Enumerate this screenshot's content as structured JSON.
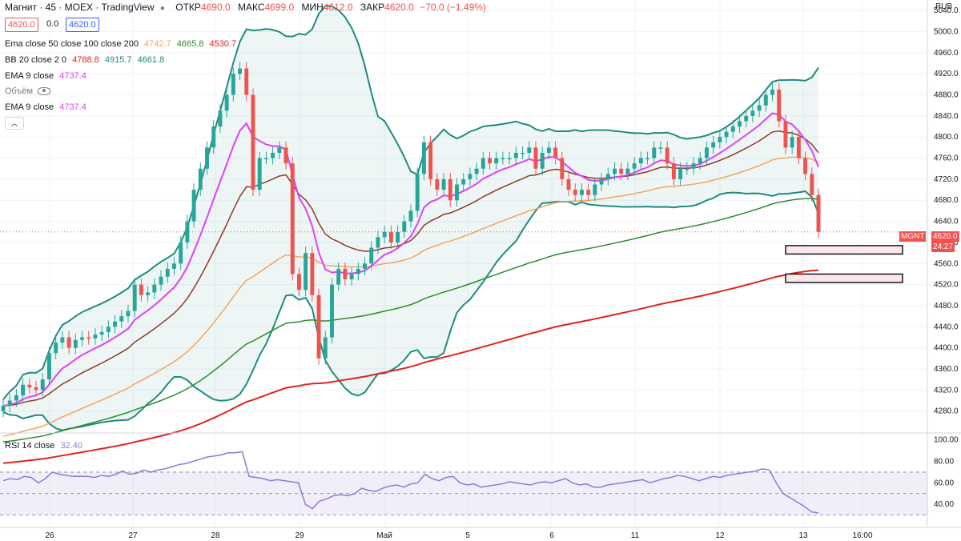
{
  "header": {
    "symbol": "Магнит · 45 · MOEX · TradingView",
    "open_label": "ОТКР",
    "open": "4690.0",
    "high_label": "МАКС",
    "high": "4699.0",
    "low_label": "МИН",
    "low": "4612.0",
    "close_label": "ЗАКР",
    "close": "4620.0",
    "change": "−70.0 (−1.49%)",
    "currency": "RUB",
    "bid": "4620.0",
    "spread": "0.0",
    "ask": "4620.0"
  },
  "indicators": {
    "ema": {
      "label": "Ema close 50 close 100 close 200",
      "v1": "4742.7",
      "v2": "4665.8",
      "v3": "4530.7"
    },
    "bb": {
      "label": "BB 20 close 2 0",
      "v1": "4788.8",
      "v2": "4915.7",
      "v3": "4661.8"
    },
    "ema9a": {
      "label": "EMA 9 close",
      "v": "4737.4"
    },
    "volume": {
      "label": "Объём"
    },
    "ema9b": {
      "label": "EMA 9 close",
      "v": "4737.4"
    },
    "rsi": {
      "label": "RSI 14 close",
      "v": "32.40"
    }
  },
  "price_tag": {
    "ticker": "MGNT",
    "price": "4620.0",
    "timer": "24:27"
  },
  "chart_data": {
    "type": "candlestick",
    "y_range": [
      4240,
      5060
    ],
    "y_ticks": [
      4280,
      4320,
      4360,
      4400,
      4440,
      4480,
      4520,
      4560,
      4600,
      4640,
      4680,
      4720,
      4760,
      4800,
      4840,
      4880,
      4920,
      4960,
      5000,
      5040
    ],
    "x_labels": [
      "26",
      "27",
      "28",
      "29",
      "Май",
      "5",
      "6",
      "11",
      "12",
      "13",
      "16:00"
    ],
    "rsi_ticks": [
      40,
      60,
      80,
      100
    ],
    "rsi_levels": [
      70,
      50,
      30
    ],
    "closes": [
      4290,
      4300,
      4310,
      4330,
      4325,
      4320,
      4340,
      4390,
      4410,
      4420,
      4400,
      4415,
      4420,
      4418,
      4425,
      4430,
      4440,
      4450,
      4460,
      4470,
      4520,
      4500,
      4505,
      4520,
      4535,
      4550,
      4560,
      4600,
      4640,
      4700,
      4740,
      4780,
      4820,
      4850,
      4880,
      4920,
      4930,
      4880,
      4700,
      4760,
      4760,
      4770,
      4780,
      4750,
      4540,
      4510,
      4580,
      4500,
      4380,
      4420,
      4520,
      4550,
      4530,
      4540,
      4550,
      4560,
      4590,
      4610,
      4620,
      4600,
      4620,
      4640,
      4660,
      4730,
      4790,
      4720,
      4700,
      4720,
      4680,
      4710,
      4720,
      4730,
      4740,
      4760,
      4750,
      4760,
      4760,
      4760,
      4770,
      4770,
      4780,
      4740,
      4770,
      4780,
      4760,
      4720,
      4700,
      4690,
      4700,
      4690,
      4710,
      4720,
      4730,
      4740,
      4730,
      4740,
      4750,
      4760,
      4760,
      4780,
      4780,
      4750,
      4720,
      4740,
      4740,
      4750,
      4760,
      4780,
      4790,
      4800,
      4810,
      4820,
      4830,
      4840,
      4850,
      4860,
      4880,
      4890,
      4830,
      4780,
      4800,
      4760,
      4730,
      4690,
      4620
    ],
    "series": [
      {
        "name": "EMA 9",
        "color": "#e040fb"
      },
      {
        "name": "EMA 20",
        "color": "#8d3a2a"
      },
      {
        "name": "EMA 50",
        "color": "#f4a460"
      },
      {
        "name": "EMA 100",
        "color": "#2e8b2e"
      },
      {
        "name": "EMA 200",
        "color": "#e0241e"
      },
      {
        "name": "BB",
        "color": "#1e8c7e"
      },
      {
        "name": "RSI",
        "color": "#8c7ad6"
      }
    ],
    "rsi_values": [
      62,
      64,
      63,
      66,
      65,
      60,
      64,
      70,
      68,
      67,
      66,
      66,
      66,
      65,
      67,
      66,
      68,
      71,
      68,
      69,
      72,
      70,
      72,
      73,
      75,
      77,
      78,
      80,
      82,
      84,
      85,
      86,
      88,
      88,
      89,
      66,
      65,
      64,
      62,
      63,
      62,
      61,
      60,
      40,
      36,
      43,
      45,
      48,
      49,
      48,
      50,
      55,
      53,
      52,
      55,
      57,
      58,
      56,
      59,
      60,
      68,
      64,
      62,
      65,
      66,
      60,
      58,
      59,
      56,
      57,
      58,
      59,
      61,
      60,
      59,
      58,
      60,
      61,
      60,
      62,
      64,
      60,
      58,
      59,
      56,
      56,
      58,
      59,
      60,
      61,
      62,
      63,
      60,
      62,
      64,
      65,
      67,
      66,
      64,
      62,
      64,
      66,
      65,
      67,
      68,
      69,
      70,
      71,
      73,
      72,
      60,
      50,
      46,
      42,
      38,
      33,
      32
    ],
    "levels": [
      {
        "label": "zone",
        "low": 4578,
        "high": 4594
      },
      {
        "label": "zone",
        "low": 4524,
        "high": 4540
      }
    ]
  }
}
